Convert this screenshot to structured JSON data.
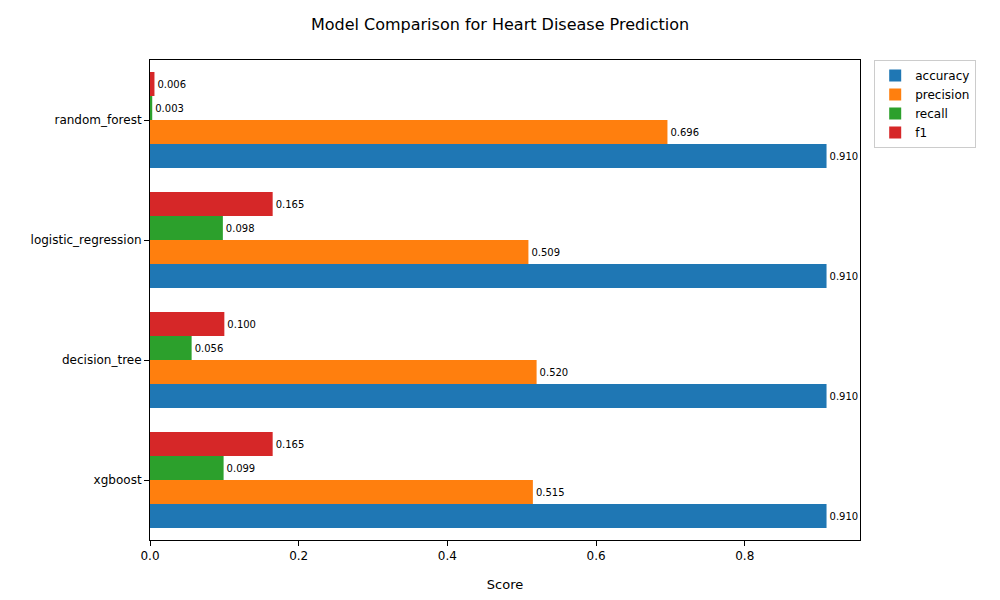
{
  "chart_data": {
    "type": "bar",
    "orientation": "horizontal",
    "title": "Model Comparison for Heart Disease Prediction",
    "x_label": "Score",
    "categories": [
      "random_forest",
      "logistic_regression",
      "decision_tree",
      "xgboost"
    ],
    "series": [
      {
        "name": "accuracy",
        "color": "#1f77b4",
        "values": [
          0.91,
          0.91,
          0.91,
          0.91
        ],
        "value_labels": [
          "0.910",
          "0.910",
          "0.910",
          "0.910"
        ]
      },
      {
        "name": "precision",
        "color": "#ff7f0e",
        "values": [
          0.696,
          0.509,
          0.52,
          0.515
        ],
        "value_labels": [
          "0.696",
          "0.509",
          "0.520",
          "0.515"
        ]
      },
      {
        "name": "recall",
        "color": "#2ca02c",
        "values": [
          0.003,
          0.098,
          0.056,
          0.099
        ],
        "value_labels": [
          "0.003",
          "0.098",
          "0.056",
          "0.099"
        ]
      },
      {
        "name": "f1",
        "color": "#d62728",
        "values": [
          0.006,
          0.165,
          0.1,
          0.165
        ],
        "value_labels": [
          "0.006",
          "0.165",
          "0.100",
          "0.165"
        ]
      }
    ],
    "xlim": [
      0,
      0.955
    ],
    "xticks": [
      {
        "value": 0,
        "label": "0.0"
      },
      {
        "value": 0.2,
        "label": "0.2"
      },
      {
        "value": 0.4,
        "label": "0.4"
      },
      {
        "value": 0.6,
        "label": "0.6"
      },
      {
        "value": 0.8,
        "label": "0.8"
      }
    ],
    "grid": false,
    "legend": "upper right",
    "data_labels": true
  }
}
